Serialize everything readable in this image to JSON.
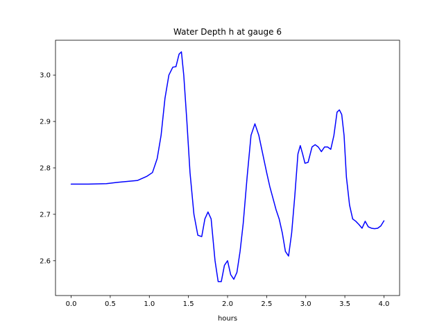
{
  "chart_data": {
    "type": "line",
    "title": "Water Depth h at gauge 6",
    "xlabel": "hours",
    "ylabel": "",
    "xlim": [
      -0.2,
      4.2
    ],
    "ylim": [
      2.525,
      3.075
    ],
    "xticks": [
      0.0,
      0.5,
      1.0,
      1.5,
      2.0,
      2.5,
      3.0,
      3.5,
      4.0
    ],
    "xtick_labels": [
      "0.0",
      "0.5",
      "1.0",
      "1.5",
      "2.0",
      "2.5",
      "3.0",
      "3.5",
      "4.0"
    ],
    "yticks": [
      2.6,
      2.7,
      2.8,
      2.9,
      3.0
    ],
    "ytick_labels": [
      "2.6",
      "2.7",
      "2.8",
      "2.9",
      "3.0"
    ],
    "grid": false,
    "legend": "none",
    "series": [
      {
        "color": "#0000ff",
        "x": [
          0.0,
          0.2,
          0.45,
          0.6,
          0.85,
          0.97,
          1.04,
          1.1,
          1.15,
          1.2,
          1.25,
          1.3,
          1.34,
          1.38,
          1.41,
          1.44,
          1.48,
          1.52,
          1.57,
          1.62,
          1.67,
          1.71,
          1.75,
          1.79,
          1.84,
          1.88,
          1.92,
          1.96,
          2.0,
          2.04,
          2.08,
          2.12,
          2.16,
          2.2,
          2.25,
          2.3,
          2.35,
          2.4,
          2.45,
          2.5,
          2.54,
          2.58,
          2.62,
          2.66,
          2.7,
          2.74,
          2.78,
          2.82,
          2.86,
          2.9,
          2.93,
          2.96,
          2.99,
          3.03,
          3.08,
          3.12,
          3.16,
          3.2,
          3.24,
          3.28,
          3.32,
          3.36,
          3.4,
          3.43,
          3.46,
          3.49,
          3.52,
          3.56,
          3.6,
          3.64,
          3.68,
          3.72,
          3.76,
          3.8,
          3.84,
          3.88,
          3.92,
          3.96,
          4.0
        ],
        "y": [
          2.765,
          2.765,
          2.766,
          2.769,
          2.773,
          2.782,
          2.79,
          2.82,
          2.87,
          2.95,
          3.0,
          3.017,
          3.018,
          3.045,
          3.05,
          3.0,
          2.9,
          2.79,
          2.7,
          2.655,
          2.652,
          2.69,
          2.705,
          2.69,
          2.6,
          2.555,
          2.555,
          2.59,
          2.6,
          2.57,
          2.56,
          2.575,
          2.62,
          2.68,
          2.78,
          2.87,
          2.895,
          2.87,
          2.83,
          2.79,
          2.76,
          2.735,
          2.71,
          2.69,
          2.66,
          2.62,
          2.61,
          2.66,
          2.74,
          2.83,
          2.848,
          2.83,
          2.81,
          2.812,
          2.845,
          2.85,
          2.845,
          2.835,
          2.845,
          2.845,
          2.84,
          2.87,
          2.92,
          2.925,
          2.915,
          2.87,
          2.78,
          2.72,
          2.69,
          2.685,
          2.678,
          2.67,
          2.685,
          2.673,
          2.67,
          2.669,
          2.67,
          2.675,
          2.686
        ]
      }
    ]
  }
}
